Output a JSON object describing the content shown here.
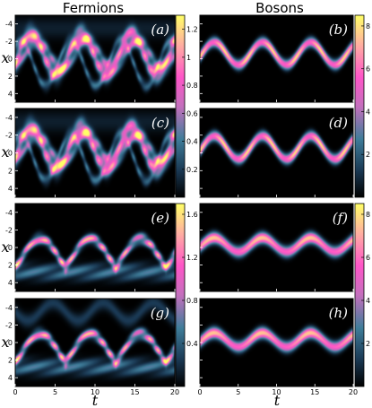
{
  "figure": {
    "column_titles": [
      "Fermions",
      "Bosons"
    ],
    "xlabel": "t",
    "ylabel": "x",
    "x_ticks": [
      "0",
      "5",
      "10",
      "15",
      "20"
    ],
    "y_ticks": [
      "-4",
      "-2",
      "0",
      "2",
      "4"
    ],
    "colorbar_ticks": {
      "top_left": [
        "1.2",
        "1",
        "0.8",
        "0.6",
        "0.4",
        "0.2"
      ],
      "top_right": [
        "8",
        "6",
        "4",
        "2"
      ],
      "bottom_left": [
        "1.6",
        "1.2",
        "0.8",
        "0.4"
      ],
      "bottom_right": [
        "8",
        "6",
        "4",
        "2"
      ]
    },
    "colormap": [
      "#000000",
      "#1b3a55",
      "#3f7d9a",
      "#c46fbd",
      "#ff55c8",
      "#ffb0a0",
      "#ffff66"
    ]
  },
  "chart_data": [
    {
      "type": "heatmap",
      "panel_label": "(a)",
      "species": "Fermions",
      "xlim": [
        0,
        20
      ],
      "ylim": [
        -5,
        5
      ],
      "clim": [
        0,
        1.3
      ],
      "oscillation_amplitude": 2.3,
      "oscillation_period": 6.3
    },
    {
      "type": "heatmap",
      "panel_label": "(b)",
      "species": "Bosons",
      "xlim": [
        0,
        20
      ],
      "ylim": [
        -5,
        5
      ],
      "clim": [
        0,
        8.5
      ],
      "oscillation_amplitude": 1.3,
      "oscillation_period": 6.3
    },
    {
      "type": "heatmap",
      "panel_label": "(c)",
      "species": "Fermions",
      "xlim": [
        0,
        20
      ],
      "ylim": [
        -5,
        5
      ],
      "clim": [
        0,
        1.3
      ],
      "oscillation_amplitude": 2.3,
      "oscillation_period": 6.3
    },
    {
      "type": "heatmap",
      "panel_label": "(d)",
      "species": "Bosons",
      "xlim": [
        0,
        20
      ],
      "ylim": [
        -5,
        5
      ],
      "clim": [
        0,
        8.5
      ],
      "oscillation_amplitude": 1.3,
      "oscillation_period": 6.3
    },
    {
      "type": "heatmap",
      "panel_label": "(e)",
      "species": "Fermions",
      "xlim": [
        0,
        20
      ],
      "ylim": [
        -5,
        5
      ],
      "clim": [
        0,
        1.7
      ],
      "oscillation_amplitude": 1.6,
      "oscillation_period": 6.3
    },
    {
      "type": "heatmap",
      "panel_label": "(f)",
      "species": "Bosons",
      "xlim": [
        0,
        20
      ],
      "ylim": [
        -5,
        5
      ],
      "clim": [
        0,
        8.5
      ],
      "oscillation_amplitude": 0.8,
      "oscillation_period": 6.3
    },
    {
      "type": "heatmap",
      "panel_label": "(g)",
      "species": "Fermions",
      "xlim": [
        0,
        20
      ],
      "ylim": [
        -5,
        5
      ],
      "clim": [
        0,
        1.7
      ],
      "oscillation_amplitude": 1.6,
      "oscillation_period": 6.3
    },
    {
      "type": "heatmap",
      "panel_label": "(h)",
      "species": "Bosons",
      "xlim": [
        0,
        20
      ],
      "ylim": [
        -5,
        5
      ],
      "clim": [
        0,
        8.5
      ],
      "oscillation_amplitude": 0.8,
      "oscillation_period": 6.3
    }
  ]
}
